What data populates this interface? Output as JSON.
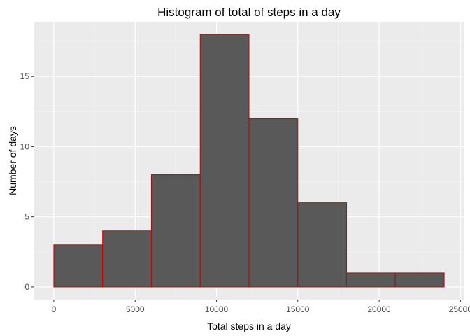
{
  "chart_data": {
    "type": "bar",
    "subtype": "histogram",
    "title": "Histogram of total of steps in a day",
    "xlabel": "Total steps in a day",
    "ylabel": "Number of days",
    "bins": [
      {
        "start": 0,
        "end": 3000,
        "count": 3
      },
      {
        "start": 3000,
        "end": 6000,
        "count": 4
      },
      {
        "start": 6000,
        "end": 9000,
        "count": 8
      },
      {
        "start": 9000,
        "end": 12000,
        "count": 18
      },
      {
        "start": 12000,
        "end": 15000,
        "count": 12
      },
      {
        "start": 15000,
        "end": 18000,
        "count": 6
      },
      {
        "start": 18000,
        "end": 21000,
        "count": 1
      },
      {
        "start": 21000,
        "end": 24000,
        "count": 1
      }
    ],
    "xlim": [
      -1200,
      25200
    ],
    "ylim": [
      -0.9,
      18.9
    ],
    "x_ticks": [
      0,
      5000,
      10000,
      15000,
      20000,
      25000
    ],
    "x_tick_labels": [
      "0",
      "5000",
      "10000",
      "15000",
      "20000",
      "25000"
    ],
    "y_ticks": [
      0,
      5,
      10,
      15
    ],
    "y_tick_labels": [
      "0",
      "5",
      "10",
      "15"
    ],
    "x_minor_ticks": [
      2500,
      7500,
      12500,
      17500,
      22500
    ],
    "y_minor_ticks": [
      2.5,
      7.5,
      12.5,
      17.5
    ],
    "grid": true,
    "legend": "none",
    "colors": {
      "bar_fill": "#595959",
      "bar_outline": "#cc0000",
      "panel_background": "#ebebeb",
      "grid_major": "#ffffff",
      "grid_minor": "#f5f5f5",
      "tick_mark": "#333333"
    }
  }
}
